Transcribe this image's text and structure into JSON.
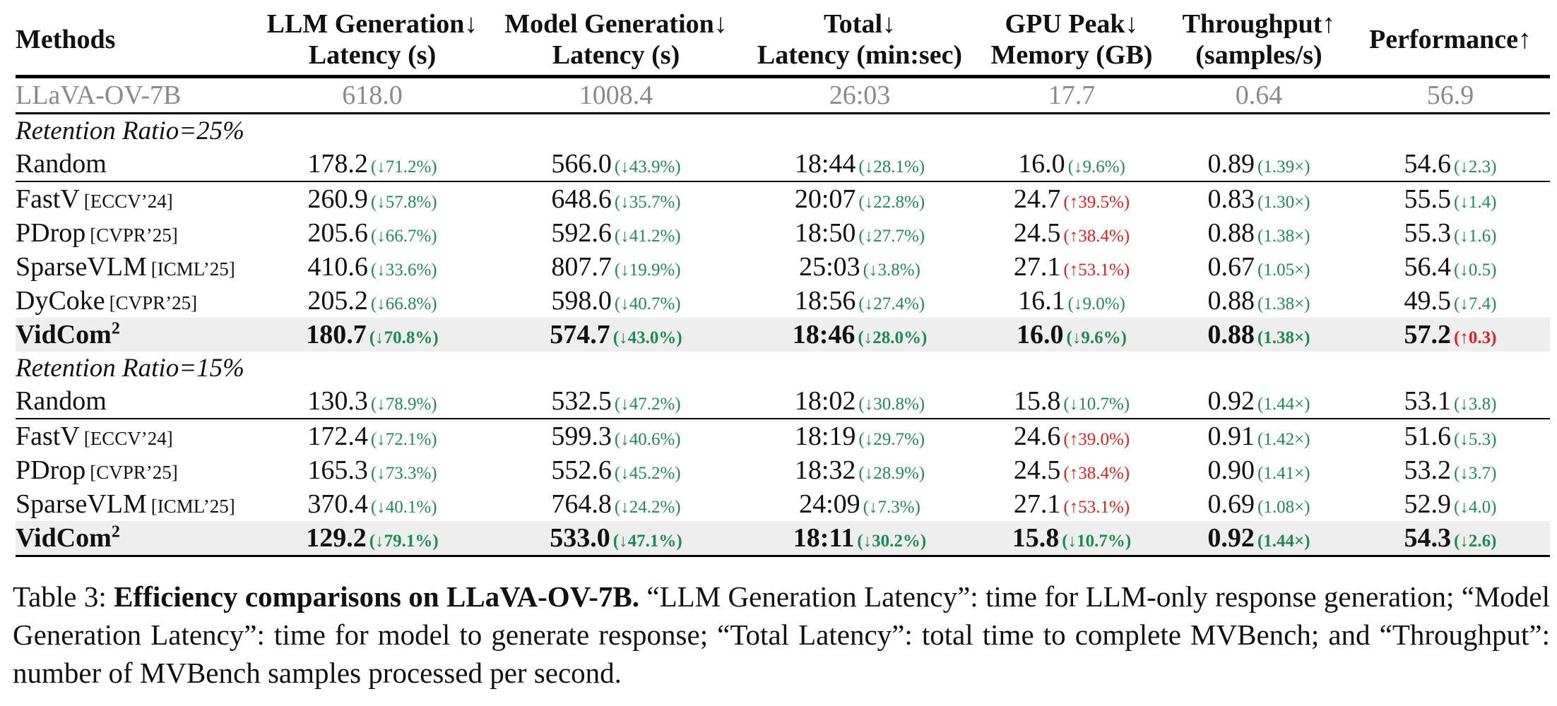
{
  "table": {
    "headers": [
      {
        "line1": "Methods",
        "line2": ""
      },
      {
        "line1": "LLM Generation↓",
        "line2": "Latency (s)"
      },
      {
        "line1": "Model Generation↓",
        "line2": "Latency (s)"
      },
      {
        "line1": "Total↓",
        "line2": "Latency (min:sec)"
      },
      {
        "line1": "GPU Peak↓",
        "line2": "Memory (GB)"
      },
      {
        "line1": "Throughput↑",
        "line2": "(samples/s)"
      },
      {
        "line1": "Performance↑",
        "line2": ""
      }
    ],
    "baseline": {
      "method": "LLaVA-OV-7B",
      "cells": [
        "618.0",
        "1008.4",
        "26:03",
        "17.7",
        "0.64",
        "56.9"
      ]
    },
    "groups": [
      {
        "title": "Retention Ratio=25%",
        "rows": [
          {
            "method": "Random",
            "tag": "",
            "sup": "",
            "cells": [
              {
                "v": "178.2",
                "d": "(↓71.2%)"
              },
              {
                "v": "566.0",
                "d": "(↓43.9%)"
              },
              {
                "v": "18:44",
                "d": "(↓28.1%)"
              },
              {
                "v": "16.0",
                "d": "(↓9.6%)"
              },
              {
                "v": "0.89",
                "d": "(1.39×)"
              },
              {
                "v": "54.6",
                "d": "(↓2.3)"
              }
            ]
          },
          {
            "method": "FastV",
            "tag": "[ECCV’24]",
            "sup": "",
            "cells": [
              {
                "v": "260.9",
                "d": "(↓57.8%)"
              },
              {
                "v": "648.6",
                "d": "(↓35.7%)"
              },
              {
                "v": "20:07",
                "d": "(↓22.8%)"
              },
              {
                "v": "24.7",
                "d": "(↑39.5%)"
              },
              {
                "v": "0.83",
                "d": "(1.30×)"
              },
              {
                "v": "55.5",
                "d": "(↓1.4)"
              }
            ]
          },
          {
            "method": "PDrop",
            "tag": "[CVPR’25]",
            "sup": "",
            "cells": [
              {
                "v": "205.6",
                "d": "(↓66.7%)"
              },
              {
                "v": "592.6",
                "d": "(↓41.2%)"
              },
              {
                "v": "18:50",
                "d": "(↓27.7%)"
              },
              {
                "v": "24.5",
                "d": "(↑38.4%)"
              },
              {
                "v": "0.88",
                "d": "(1.38×)"
              },
              {
                "v": "55.3",
                "d": "(↓1.6)"
              }
            ]
          },
          {
            "method": "SparseVLM",
            "tag": "[ICML’25]",
            "sup": "",
            "cells": [
              {
                "v": "410.6",
                "d": "(↓33.6%)"
              },
              {
                "v": "807.7",
                "d": "(↓19.9%)"
              },
              {
                "v": "25:03",
                "d": "(↓3.8%)"
              },
              {
                "v": "27.1",
                "d": "(↑53.1%)"
              },
              {
                "v": "0.67",
                "d": "(1.05×)"
              },
              {
                "v": "56.4",
                "d": "(↓0.5)"
              }
            ]
          },
          {
            "method": "DyCoke",
            "tag": "[CVPR’25]",
            "sup": "",
            "cells": [
              {
                "v": "205.2",
                "d": "(↓66.8%)"
              },
              {
                "v": "598.0",
                "d": "(↓40.7%)"
              },
              {
                "v": "18:56",
                "d": "(↓27.4%)"
              },
              {
                "v": "16.1",
                "d": "(↓9.0%)"
              },
              {
                "v": "0.88",
                "d": "(1.38×)"
              },
              {
                "v": "49.5",
                "d": "(↓7.4)"
              }
            ]
          },
          {
            "method": "VidCom",
            "tag": "",
            "sup": "2",
            "cells": [
              {
                "v": "180.7",
                "d": "(↓70.8%)"
              },
              {
                "v": "574.7",
                "d": "(↓43.0%)"
              },
              {
                "v": "18:46",
                "d": "(↓28.0%)"
              },
              {
                "v": "16.0",
                "d": "(↓9.6%)"
              },
              {
                "v": "0.88",
                "d": "(1.38×)"
              },
              {
                "v": "57.2",
                "d": "(↑0.3)"
              }
            ]
          }
        ]
      },
      {
        "title": "Retention Ratio=15%",
        "rows": [
          {
            "method": "Random",
            "tag": "",
            "sup": "",
            "cells": [
              {
                "v": "130.3",
                "d": "(↓78.9%)"
              },
              {
                "v": "532.5",
                "d": "(↓47.2%)"
              },
              {
                "v": "18:02",
                "d": "(↓30.8%)"
              },
              {
                "v": "15.8",
                "d": "(↓10.7%)"
              },
              {
                "v": "0.92",
                "d": "(1.44×)"
              },
              {
                "v": "53.1",
                "d": "(↓3.8)"
              }
            ]
          },
          {
            "method": "FastV",
            "tag": "[ECCV’24]",
            "sup": "",
            "cells": [
              {
                "v": "172.4",
                "d": "(↓72.1%)"
              },
              {
                "v": "599.3",
                "d": "(↓40.6%)"
              },
              {
                "v": "18:19",
                "d": "(↓29.7%)"
              },
              {
                "v": "24.6",
                "d": "(↑39.0%)"
              },
              {
                "v": "0.91",
                "d": "(1.42×)"
              },
              {
                "v": "51.6",
                "d": "(↓5.3)"
              }
            ]
          },
          {
            "method": "PDrop",
            "tag": "[CVPR’25]",
            "sup": "",
            "cells": [
              {
                "v": "165.3",
                "d": "(↓73.3%)"
              },
              {
                "v": "552.6",
                "d": "(↓45.2%)"
              },
              {
                "v": "18:32",
                "d": "(↓28.9%)"
              },
              {
                "v": "24.5",
                "d": "(↑38.4%)"
              },
              {
                "v": "0.90",
                "d": "(1.41×)"
              },
              {
                "v": "53.2",
                "d": "(↓3.7)"
              }
            ]
          },
          {
            "method": "SparseVLM",
            "tag": "[ICML’25]",
            "sup": "",
            "cells": [
              {
                "v": "370.4",
                "d": "(↓40.1%)"
              },
              {
                "v": "764.8",
                "d": "(↓24.2%)"
              },
              {
                "v": "24:09",
                "d": "(↓7.3%)"
              },
              {
                "v": "27.1",
                "d": "(↑53.1%)"
              },
              {
                "v": "0.69",
                "d": "(1.08×)"
              },
              {
                "v": "52.9",
                "d": "(↓4.0)"
              }
            ]
          },
          {
            "method": "VidCom",
            "tag": "",
            "sup": "2",
            "cells": [
              {
                "v": "129.2",
                "d": "(↓79.1%)"
              },
              {
                "v": "533.0",
                "d": "(↓47.1%)"
              },
              {
                "v": "18:11",
                "d": "(↓30.2%)"
              },
              {
                "v": "15.8",
                "d": "(↓10.7%)"
              },
              {
                "v": "0.92",
                "d": "(1.44×)"
              },
              {
                "v": "54.3",
                "d": "(↓2.6)"
              }
            ]
          }
        ]
      }
    ]
  },
  "caption": {
    "label": "Table 3:",
    "lead": "Efficiency comparisons on LLaVA-OV-7B.",
    "body": "“LLM Generation Latency”: time for LLM-only response generation; “Model Generation Latency”: time for model to generate response; “Total Latency”: total time to complete MVBench; and “Throughput”: number of MVBench samples processed per second."
  }
}
